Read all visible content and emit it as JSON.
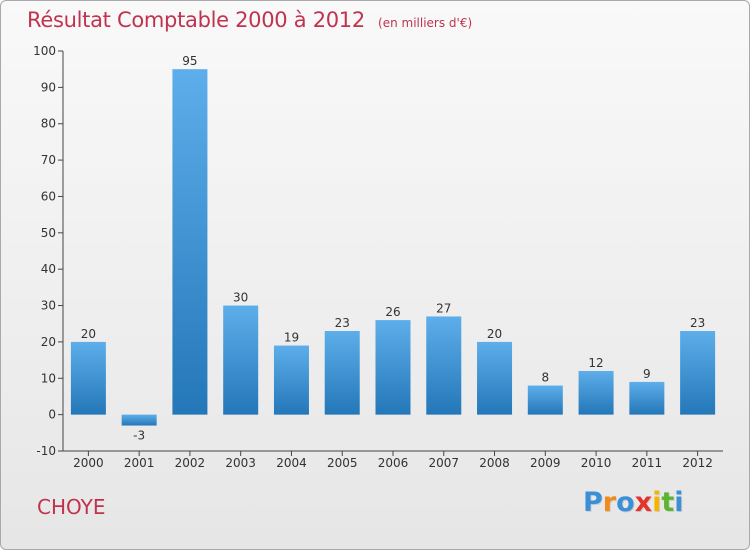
{
  "header": {
    "title": "Résultat Comptable 2000 à 2012",
    "unit": "(en milliers d'€)"
  },
  "footer": {
    "town": "CHOYE",
    "logo_text": "Proxiti",
    "logo_letters": [
      {
        "ch": "P",
        "color": "#3a8fd6"
      },
      {
        "ch": "r",
        "color": "#f08a1c"
      },
      {
        "ch": "o",
        "color": "#3a8fd6"
      },
      {
        "ch": "x",
        "color": "#e2332c"
      },
      {
        "ch": "i",
        "color": "#f4b400"
      },
      {
        "ch": "t",
        "color": "#5cb531"
      },
      {
        "ch": "i",
        "color": "#3a8fd6"
      }
    ]
  },
  "colors": {
    "bar_light": "#5daeea",
    "bar_dark": "#2477b8",
    "title": "#c0334f"
  },
  "chart_data": {
    "type": "bar",
    "title": "Résultat Comptable 2000 à 2012",
    "subtitle": "(en milliers d'€)",
    "categories": [
      "2000",
      "2001",
      "2002",
      "2003",
      "2004",
      "2005",
      "2006",
      "2007",
      "2008",
      "2009",
      "2010",
      "2011",
      "2012"
    ],
    "values": [
      20,
      -3,
      95,
      30,
      19,
      23,
      26,
      27,
      20,
      8,
      12,
      9,
      23
    ],
    "ylim": [
      -10,
      100
    ],
    "yticks": [
      -10,
      0,
      10,
      20,
      30,
      40,
      50,
      60,
      70,
      80,
      90,
      100
    ],
    "grid": false,
    "legend": "none"
  }
}
